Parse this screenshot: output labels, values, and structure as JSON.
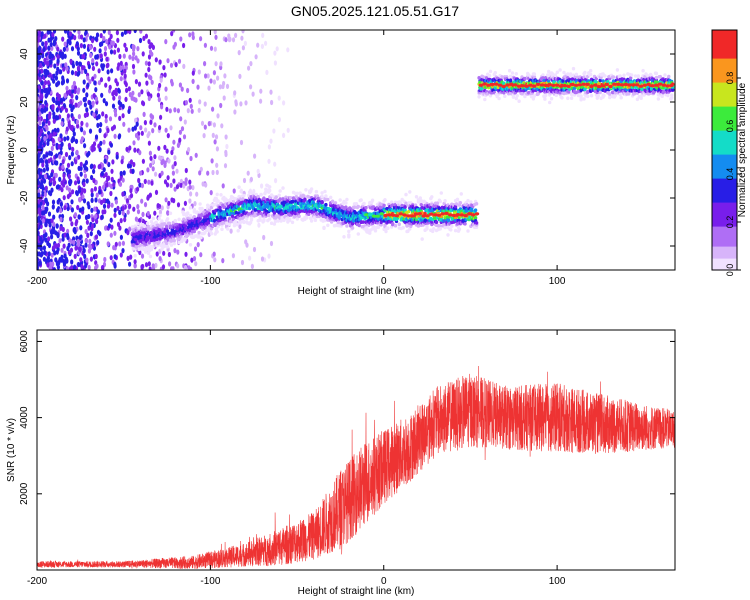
{
  "title": "GN05.2025.121.05.51.G17",
  "chart_data": [
    {
      "type": "heatmap",
      "xlabel": "Height of straight line (km)",
      "ylabel": "Frequency (Hz)",
      "xlim": [
        -200,
        168
      ],
      "ylim": [
        -50,
        50
      ],
      "xticks": [
        -200,
        -100,
        0,
        100
      ],
      "yticks": [
        -40,
        -20,
        0,
        20,
        40
      ],
      "colorbar": {
        "label": "Normalized spectral amplitude",
        "range": [
          0,
          1
        ],
        "ticks": [
          "0.0",
          "0.2",
          "0.4",
          "0.6",
          "0.8"
        ]
      },
      "trend": [
        {
          "x": -145,
          "y": -37
        },
        {
          "x": -120,
          "y": -34
        },
        {
          "x": -95,
          "y": -27
        },
        {
          "x": -75,
          "y": -23
        },
        {
          "x": -60,
          "y": -24
        },
        {
          "x": -40,
          "y": -23
        },
        {
          "x": -20,
          "y": -28
        },
        {
          "x": 0,
          "y": -27
        },
        {
          "x": 30,
          "y": -27
        },
        {
          "x": 55,
          "y": -27
        },
        {
          "x": 55,
          "y": 27
        },
        {
          "x": 100,
          "y": 27
        },
        {
          "x": 165,
          "y": 27
        }
      ],
      "grid": false
    },
    {
      "type": "line",
      "xlabel": "Height of straight line (km)",
      "ylabel": "SNR (10 * v/v)",
      "xlim": [
        -200,
        168
      ],
      "ylim": [
        0,
        6300
      ],
      "xticks": [
        -200,
        -100,
        0,
        100
      ],
      "yticks": [
        2000,
        4000,
        6000
      ],
      "series": [
        {
          "color": "#ee3333",
          "envelope": [
            {
              "x": -200,
              "mean": 150,
              "spread": 120
            },
            {
              "x": -150,
              "mean": 150,
              "spread": 120
            },
            {
              "x": -110,
              "mean": 200,
              "spread": 250
            },
            {
              "x": -80,
              "mean": 400,
              "spread": 450
            },
            {
              "x": -60,
              "mean": 600,
              "spread": 700
            },
            {
              "x": -40,
              "mean": 900,
              "spread": 900
            },
            {
              "x": -25,
              "mean": 1600,
              "spread": 1500
            },
            {
              "x": -10,
              "mean": 2300,
              "spread": 1600
            },
            {
              "x": 0,
              "mean": 2700,
              "spread": 1400
            },
            {
              "x": 15,
              "mean": 3200,
              "spread": 1300
            },
            {
              "x": 30,
              "mean": 3900,
              "spread": 1300
            },
            {
              "x": 50,
              "mean": 4200,
              "spread": 1400
            },
            {
              "x": 70,
              "mean": 4000,
              "spread": 1200
            },
            {
              "x": 100,
              "mean": 4000,
              "spread": 1300
            },
            {
              "x": 130,
              "mean": 3800,
              "spread": 1100
            },
            {
              "x": 168,
              "mean": 3700,
              "spread": 700
            }
          ]
        }
      ],
      "grid": false
    }
  ]
}
